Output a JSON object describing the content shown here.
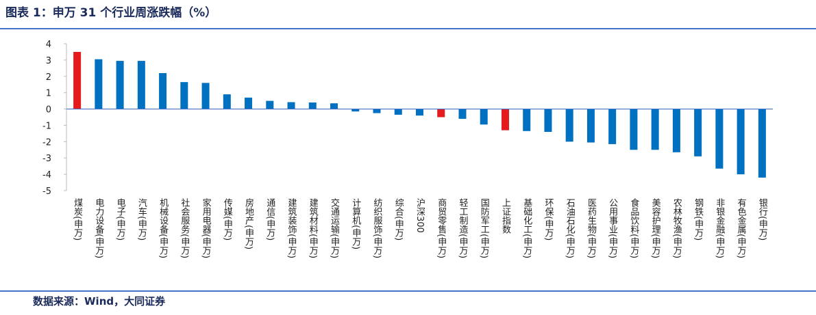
{
  "chart_data": {
    "type": "bar",
    "title": "图表 1：申万 31 个行业周涨跌幅（%）",
    "source": "数据来源：Wind，大同证券",
    "categories": [
      "煤炭(申万)",
      "电力设备(申万)",
      "电子(申万)",
      "汽车(申万)",
      "机械设备(申万)",
      "社会服务(申万)",
      "家用电器(申万)",
      "传媒(申万)",
      "房地产(申万)",
      "通信(申万)",
      "建筑装饰(申万)",
      "建筑材料(申万)",
      "交通运输(申万)",
      "计算机(申万)",
      "纺织服饰(申万)",
      "综合(申万)",
      "沪深300",
      "商贸零售(申万)",
      "轻工制造(申万)",
      "国防军工(申万)",
      "上证指数",
      "基础化工(申万)",
      "环保(申万)",
      "石油石化(申万)",
      "医药生物(申万)",
      "公用事业(申万)",
      "食品饮料(申万)",
      "美容护理(申万)",
      "农林牧渔(申万)",
      "钢铁(申万)",
      "非银金融(申万)",
      "有色金属(申万)",
      "银行(申万)"
    ],
    "values": [
      3.5,
      3.05,
      2.95,
      2.95,
      2.2,
      1.65,
      1.6,
      0.9,
      0.7,
      0.5,
      0.42,
      0.4,
      0.35,
      -0.15,
      -0.25,
      -0.35,
      -0.4,
      -0.5,
      -0.6,
      -0.95,
      -1.3,
      -1.35,
      -1.4,
      -2.0,
      -2.05,
      -2.15,
      -2.5,
      -2.5,
      -2.65,
      -2.9,
      -3.65,
      -4.0,
      -4.2
    ],
    "colors": [
      "#e41a1c",
      "#0070c0",
      "#0070c0",
      "#0070c0",
      "#0070c0",
      "#0070c0",
      "#0070c0",
      "#0070c0",
      "#0070c0",
      "#0070c0",
      "#0070c0",
      "#0070c0",
      "#0070c0",
      "#0070c0",
      "#0070c0",
      "#0070c0",
      "#0070c0",
      "#e41a1c",
      "#0070c0",
      "#0070c0",
      "#e41a1c",
      "#0070c0",
      "#0070c0",
      "#0070c0",
      "#0070c0",
      "#0070c0",
      "#0070c0",
      "#0070c0",
      "#0070c0",
      "#0070c0",
      "#0070c0",
      "#0070c0",
      "#0070c0"
    ],
    "ylim": [
      -5,
      4
    ],
    "yticks": [
      -5,
      -4,
      -3,
      -2,
      -1,
      0,
      1,
      2,
      3,
      4
    ]
  }
}
